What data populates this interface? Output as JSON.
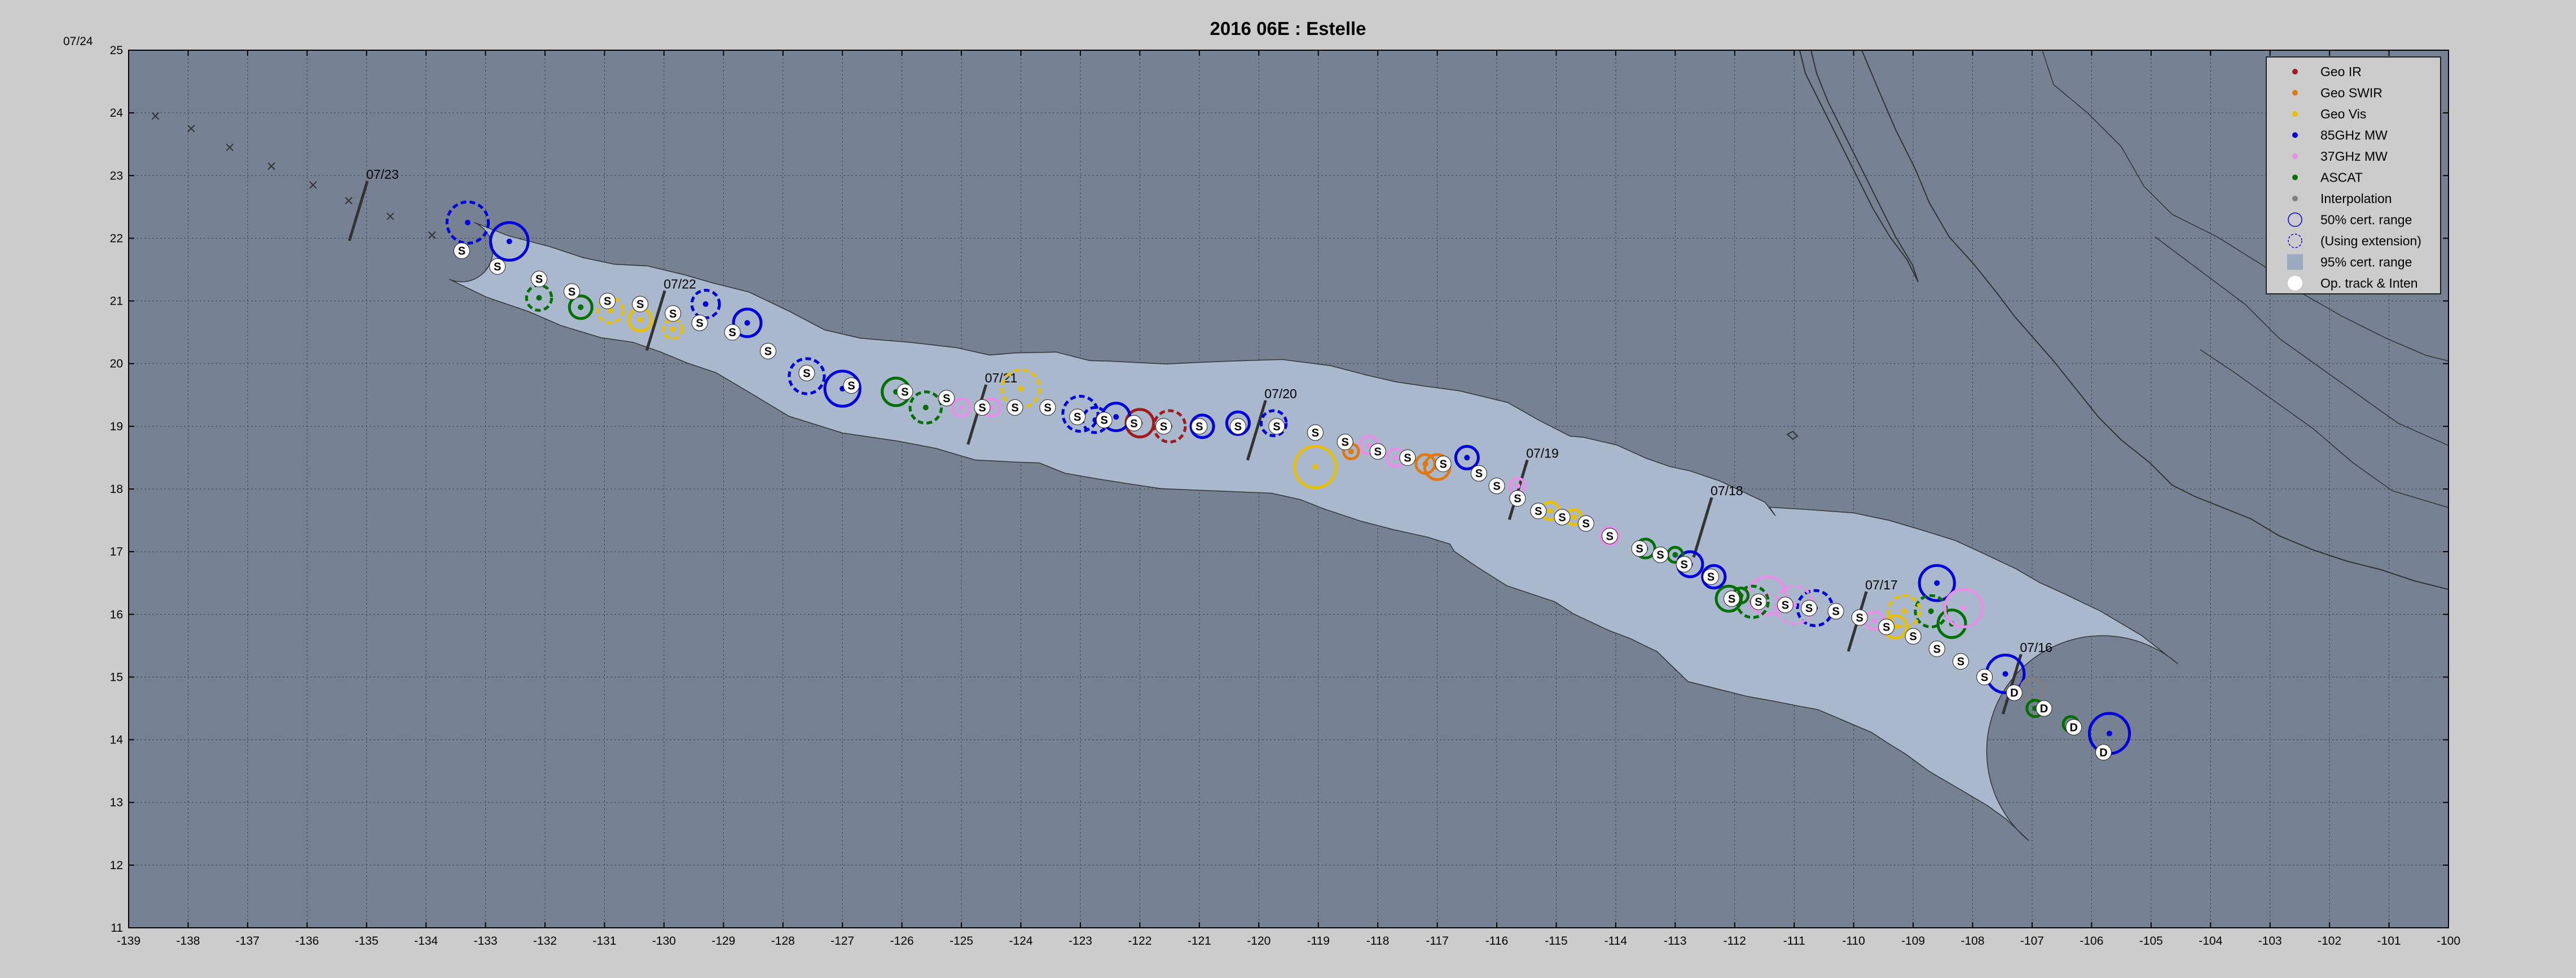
{
  "title": "2016  06E :  Estelle",
  "corner_label": "07/24",
  "axes": {
    "lon_min": -139,
    "lon_max": -100,
    "lat_min": 11,
    "lat_max": 25,
    "x_ticks": [
      "-139",
      "-138",
      "-137",
      "-136",
      "-135",
      "-134",
      "-133",
      "-132",
      "-131",
      "-130",
      "-129",
      "-128",
      "-127",
      "-126",
      "-125",
      "-124",
      "-123",
      "-122",
      "-121",
      "-120",
      "-119",
      "-118",
      "-117",
      "-116",
      "-115",
      "-114",
      "-113",
      "-112",
      "-111",
      "-110",
      "-109",
      "-108",
      "-107",
      "-106",
      "-105",
      "-104",
      "-103",
      "-102",
      "-101",
      "-100"
    ],
    "y_ticks": [
      "11",
      "12",
      "13",
      "14",
      "15",
      "16",
      "17",
      "18",
      "19",
      "20",
      "21",
      "22",
      "23",
      "24",
      "25"
    ],
    "grid": true
  },
  "colors": {
    "figure_bg": "#cccccc",
    "map_bg": "#768294",
    "cone_fill": "#a9b8cc",
    "geo_ir": "#a01c1c",
    "geo_swir": "#e07a10",
    "geo_vis": "#e8c000",
    "mw85": "#0000dd",
    "mw37": "#e890e8",
    "ascat": "#007000",
    "interp": "#808080"
  },
  "legend": {
    "placement": "top-right",
    "items": [
      {
        "label": "Geo IR",
        "icon": "dot-geo-ir"
      },
      {
        "label": "Geo SWIR",
        "icon": "dot-geo-swir"
      },
      {
        "label": "Geo Vis",
        "icon": "dot-geo-vis"
      },
      {
        "label": "85GHz MW",
        "icon": "dot-85ghz"
      },
      {
        "label": "37GHz MW",
        "icon": "dot-37ghz"
      },
      {
        "label": "ASCAT",
        "icon": "dot-ascat"
      },
      {
        "label": "Interpolation",
        "icon": "dot-interp"
      },
      {
        "label": "50% cert. range",
        "icon": "solid-circle"
      },
      {
        "label": "(Using extension)",
        "icon": "dashed-circle"
      },
      {
        "label": "95% cert. range",
        "icon": "shaded-square"
      },
      {
        "label": "Op. track & Inten",
        "icon": "white-dot"
      }
    ]
  },
  "date_labels": [
    {
      "text": "07/23",
      "lon": -135.1,
      "lat": 22.95
    },
    {
      "text": "07/22",
      "lon": -130.1,
      "lat": 21.2
    },
    {
      "text": "07/21",
      "lon": -124.7,
      "lat": 19.7
    },
    {
      "text": "07/20",
      "lon": -120.0,
      "lat": 19.45
    },
    {
      "text": "07/19",
      "lon": -115.6,
      "lat": 18.5
    },
    {
      "text": "07/18",
      "lon": -112.5,
      "lat": 17.9
    },
    {
      "text": "07/17",
      "lon": -109.9,
      "lat": 16.4
    },
    {
      "text": "07/16",
      "lon": -107.3,
      "lat": 15.4
    }
  ],
  "track": [
    {
      "lon": -105.8,
      "lat": 13.8,
      "label": "D"
    },
    {
      "lon": -106.3,
      "lat": 14.2,
      "label": "D"
    },
    {
      "lon": -106.8,
      "lat": 14.5,
      "label": "D"
    },
    {
      "lon": -107.3,
      "lat": 14.75,
      "label": "D"
    },
    {
      "lon": -107.8,
      "lat": 15.0,
      "label": "S"
    },
    {
      "lon": -108.2,
      "lat": 15.25,
      "label": "S"
    },
    {
      "lon": -108.6,
      "lat": 15.45,
      "label": "S"
    },
    {
      "lon": -109.0,
      "lat": 15.65,
      "label": "S"
    },
    {
      "lon": -109.45,
      "lat": 15.8,
      "label": "S"
    },
    {
      "lon": -109.9,
      "lat": 15.95,
      "label": "S"
    },
    {
      "lon": -110.3,
      "lat": 16.05,
      "label": "S"
    },
    {
      "lon": -110.75,
      "lat": 16.1,
      "label": "S"
    },
    {
      "lon": -111.15,
      "lat": 16.15,
      "label": "S"
    },
    {
      "lon": -111.6,
      "lat": 16.2,
      "label": "S"
    },
    {
      "lon": -112.05,
      "lat": 16.25,
      "label": "S"
    },
    {
      "lon": -112.4,
      "lat": 16.6,
      "label": "S"
    },
    {
      "lon": -112.85,
      "lat": 16.8,
      "label": "S"
    },
    {
      "lon": -113.25,
      "lat": 16.95,
      "label": "S"
    },
    {
      "lon": -113.6,
      "lat": 17.05,
      "label": "S"
    },
    {
      "lon": -114.1,
      "lat": 17.25,
      "label": "S"
    },
    {
      "lon": -114.5,
      "lat": 17.45,
      "label": "S"
    },
    {
      "lon": -114.9,
      "lat": 17.55,
      "label": "S"
    },
    {
      "lon": -115.3,
      "lat": 17.65,
      "label": "S"
    },
    {
      "lon": -115.65,
      "lat": 17.85,
      "label": "S"
    },
    {
      "lon": -116.0,
      "lat": 18.05,
      "label": "S"
    },
    {
      "lon": -116.3,
      "lat": 18.25,
      "label": "S"
    },
    {
      "lon": -116.9,
      "lat": 18.4,
      "label": "S"
    },
    {
      "lon": -117.5,
      "lat": 18.5,
      "label": "S"
    },
    {
      "lon": -118.0,
      "lat": 18.6,
      "label": "S"
    },
    {
      "lon": -118.55,
      "lat": 18.75,
      "label": "S"
    },
    {
      "lon": -119.05,
      "lat": 18.9,
      "label": "S"
    },
    {
      "lon": -119.7,
      "lat": 19.0,
      "label": "S"
    },
    {
      "lon": -120.35,
      "lat": 19.0,
      "label": "S"
    },
    {
      "lon": -121.0,
      "lat": 19.0,
      "label": "S"
    },
    {
      "lon": -121.6,
      "lat": 19.0,
      "label": "S"
    },
    {
      "lon": -122.1,
      "lat": 19.05,
      "label": "S"
    },
    {
      "lon": -122.6,
      "lat": 19.1,
      "label": "S"
    },
    {
      "lon": -123.05,
      "lat": 19.15,
      "label": "S"
    },
    {
      "lon": -123.55,
      "lat": 19.3,
      "label": "S"
    },
    {
      "lon": -124.1,
      "lat": 19.3,
      "label": "S"
    },
    {
      "lon": -124.65,
      "lat": 19.3,
      "label": "S"
    },
    {
      "lon": -125.25,
      "lat": 19.45,
      "label": "S"
    },
    {
      "lon": -125.95,
      "lat": 19.55,
      "label": "S"
    },
    {
      "lon": -126.85,
      "lat": 19.65,
      "label": "S"
    },
    {
      "lon": -127.6,
      "lat": 19.85,
      "label": "S"
    },
    {
      "lon": -128.25,
      "lat": 20.2,
      "label": "S"
    },
    {
      "lon": -128.85,
      "lat": 20.5,
      "label": "S"
    },
    {
      "lon": -129.4,
      "lat": 20.65,
      "label": "S"
    },
    {
      "lon": -129.85,
      "lat": 20.8,
      "label": "S"
    },
    {
      "lon": -130.4,
      "lat": 20.95,
      "label": "S"
    },
    {
      "lon": -130.95,
      "lat": 21.0,
      "label": "S"
    },
    {
      "lon": -131.55,
      "lat": 21.15,
      "label": "S"
    },
    {
      "lon": -132.1,
      "lat": 21.35,
      "label": "S"
    },
    {
      "lon": -132.8,
      "lat": 21.55,
      "label": "S"
    },
    {
      "lon": -133.4,
      "lat": 21.8,
      "label": "S"
    }
  ],
  "fixes": [
    {
      "lon": -105.7,
      "lat": 14.1,
      "kind": "mw85",
      "r": 0.32,
      "dashed": false
    },
    {
      "lon": -107.45,
      "lat": 15.05,
      "kind": "mw85",
      "r": 0.3,
      "dashed": false
    },
    {
      "lon": -107.0,
      "lat": 14.8,
      "kind": "interp",
      "r": 0.18,
      "dashed": false
    },
    {
      "lon": -106.95,
      "lat": 14.5,
      "kind": "ascat",
      "r": 0.13,
      "dashed": false
    },
    {
      "lon": -106.35,
      "lat": 14.25,
      "kind": "ascat",
      "r": 0.12,
      "dashed": false
    },
    {
      "lon": -108.6,
      "lat": 16.5,
      "kind": "mw85",
      "r": 0.28,
      "dashed": false
    },
    {
      "lon": -108.35,
      "lat": 15.85,
      "kind": "ascat",
      "r": 0.22,
      "dashed": false
    },
    {
      "lon": -108.7,
      "lat": 16.05,
      "kind": "ascat",
      "r": 0.25,
      "dashed": true
    },
    {
      "lon": -108.15,
      "lat": 16.1,
      "kind": "mw37",
      "r": 0.3,
      "dashed": false
    },
    {
      "lon": -109.15,
      "lat": 16.05,
      "kind": "geo_vis",
      "r": 0.25,
      "dashed": true
    },
    {
      "lon": -109.3,
      "lat": 15.8,
      "kind": "geo_vis",
      "r": 0.18,
      "dashed": false
    },
    {
      "lon": -109.65,
      "lat": 15.9,
      "kind": "mw37",
      "r": 0.14,
      "dashed": false
    },
    {
      "lon": -110.65,
      "lat": 16.1,
      "kind": "mw85",
      "r": 0.28,
      "dashed": true
    },
    {
      "lon": -111.0,
      "lat": 16.15,
      "kind": "mw37",
      "r": 0.3,
      "dashed": true
    },
    {
      "lon": -111.45,
      "lat": 16.3,
      "kind": "mw37",
      "r": 0.3,
      "dashed": false
    },
    {
      "lon": -111.7,
      "lat": 16.2,
      "kind": "ascat",
      "r": 0.25,
      "dashed": true
    },
    {
      "lon": -112.1,
      "lat": 16.25,
      "kind": "ascat",
      "r": 0.2,
      "dashed": false
    },
    {
      "lon": -111.9,
      "lat": 16.3,
      "kind": "ascat",
      "r": 0.12,
      "dashed": false
    },
    {
      "lon": -112.35,
      "lat": 16.6,
      "kind": "mw85",
      "r": 0.18,
      "dashed": false
    },
    {
      "lon": -112.75,
      "lat": 16.8,
      "kind": "mw85",
      "r": 0.2,
      "dashed": false
    },
    {
      "lon": -113.0,
      "lat": 16.95,
      "kind": "ascat",
      "r": 0.12,
      "dashed": false
    },
    {
      "lon": -113.5,
      "lat": 17.05,
      "kind": "ascat",
      "r": 0.15,
      "dashed": false
    },
    {
      "lon": -114.1,
      "lat": 17.25,
      "kind": "mw37",
      "r": 0.14,
      "dashed": false
    },
    {
      "lon": -114.7,
      "lat": 17.55,
      "kind": "geo_vis",
      "r": 0.12,
      "dashed": false
    },
    {
      "lon": -115.1,
      "lat": 17.65,
      "kind": "geo_vis",
      "r": 0.14,
      "dashed": false
    },
    {
      "lon": -115.65,
      "lat": 18.05,
      "kind": "mw37",
      "r": 0.12,
      "dashed": false
    },
    {
      "lon": -116.5,
      "lat": 18.5,
      "kind": "mw85",
      "r": 0.18,
      "dashed": false
    },
    {
      "lon": -117.0,
      "lat": 18.35,
      "kind": "geo_swir",
      "r": 0.2,
      "dashed": false
    },
    {
      "lon": -117.2,
      "lat": 18.4,
      "kind": "geo_swir",
      "r": 0.15,
      "dashed": false
    },
    {
      "lon": -117.7,
      "lat": 18.5,
      "kind": "mw37",
      "r": 0.14,
      "dashed": false
    },
    {
      "lon": -118.15,
      "lat": 18.7,
      "kind": "mw37",
      "r": 0.14,
      "dashed": false
    },
    {
      "lon": -118.45,
      "lat": 18.6,
      "kind": "geo_swir",
      "r": 0.12,
      "dashed": false
    },
    {
      "lon": -119.05,
      "lat": 18.35,
      "kind": "geo_vis",
      "r": 0.33,
      "dashed": false
    },
    {
      "lon": -119.75,
      "lat": 19.05,
      "kind": "mw85",
      "r": 0.2,
      "dashed": true
    },
    {
      "lon": -120.35,
      "lat": 19.05,
      "kind": "mw85",
      "r": 0.18,
      "dashed": false
    },
    {
      "lon": -120.95,
      "lat": 19.0,
      "kind": "mw85",
      "r": 0.18,
      "dashed": false
    },
    {
      "lon": -121.5,
      "lat": 19.0,
      "kind": "geo_ir",
      "r": 0.25,
      "dashed": true
    },
    {
      "lon": -122.0,
      "lat": 19.05,
      "kind": "geo_ir",
      "r": 0.22,
      "dashed": false
    },
    {
      "lon": -122.4,
      "lat": 19.15,
      "kind": "mw85",
      "r": 0.22,
      "dashed": false
    },
    {
      "lon": -122.75,
      "lat": 19.1,
      "kind": "mw85",
      "r": 0.2,
      "dashed": true
    },
    {
      "lon": -123.0,
      "lat": 19.2,
      "kind": "mw85",
      "r": 0.28,
      "dashed": true
    },
    {
      "lon": -124.0,
      "lat": 19.6,
      "kind": "geo_vis",
      "r": 0.3,
      "dashed": true
    },
    {
      "lon": -124.5,
      "lat": 19.3,
      "kind": "mw37",
      "r": 0.14,
      "dashed": false
    },
    {
      "lon": -125.0,
      "lat": 19.3,
      "kind": "mw37",
      "r": 0.14,
      "dashed": false
    },
    {
      "lon": -125.6,
      "lat": 19.3,
      "kind": "ascat",
      "r": 0.25,
      "dashed": true
    },
    {
      "lon": -126.1,
      "lat": 19.55,
      "kind": "ascat",
      "r": 0.22,
      "dashed": false
    },
    {
      "lon": -127.0,
      "lat": 19.6,
      "kind": "mw85",
      "r": 0.28,
      "dashed": false
    },
    {
      "lon": -127.6,
      "lat": 19.8,
      "kind": "mw85",
      "r": 0.28,
      "dashed": true
    },
    {
      "lon": -128.6,
      "lat": 20.65,
      "kind": "mw85",
      "r": 0.22,
      "dashed": false
    },
    {
      "lon": -129.3,
      "lat": 20.95,
      "kind": "mw85",
      "r": 0.22,
      "dashed": true
    },
    {
      "lon": -129.85,
      "lat": 20.55,
      "kind": "geo_vis",
      "r": 0.15,
      "dashed": true
    },
    {
      "lon": -130.4,
      "lat": 20.7,
      "kind": "geo_vis",
      "r": 0.18,
      "dashed": false
    },
    {
      "lon": -130.9,
      "lat": 20.85,
      "kind": "geo_vis",
      "r": 0.2,
      "dashed": true
    },
    {
      "lon": -131.4,
      "lat": 20.9,
      "kind": "ascat",
      "r": 0.18,
      "dashed": false
    },
    {
      "lon": -132.1,
      "lat": 21.05,
      "kind": "ascat",
      "r": 0.2,
      "dashed": true
    },
    {
      "lon": -132.6,
      "lat": 21.95,
      "kind": "mw85",
      "r": 0.3,
      "dashed": false
    },
    {
      "lon": -133.3,
      "lat": 22.25,
      "kind": "mw85",
      "r": 0.33,
      "dashed": true
    }
  ],
  "op_extension": [
    {
      "lon": -133.9,
      "lat": 22.05
    },
    {
      "lon": -134.6,
      "lat": 22.35
    },
    {
      "lon": -135.3,
      "lat": 22.6
    },
    {
      "lon": -135.9,
      "lat": 22.85
    },
    {
      "lon": -136.6,
      "lat": 23.15
    },
    {
      "lon": -137.3,
      "lat": 23.45
    },
    {
      "lon": -137.95,
      "lat": 23.75
    },
    {
      "lon": -138.55,
      "lat": 23.95
    }
  ]
}
